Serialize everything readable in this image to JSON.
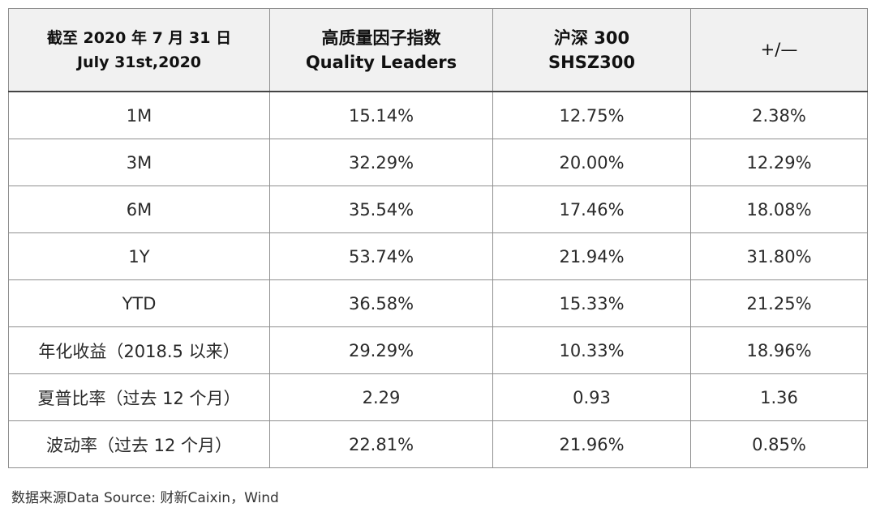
{
  "table": {
    "headers": [
      {
        "line1": "截至 2020 年 7 月 31 日",
        "line2": "July 31st,2020"
      },
      {
        "line1": "高质量因子指数",
        "line2": "Quality Leaders"
      },
      {
        "line1": "沪深 300",
        "line2": "SHSZ300"
      },
      {
        "line1": "+/—",
        "line2": ""
      }
    ],
    "rows": [
      {
        "label": "1M",
        "quality": "15.14%",
        "shsz": "12.75%",
        "diff": "2.38%"
      },
      {
        "label": "3M",
        "quality": "32.29%",
        "shsz": "20.00%",
        "diff": "12.29%"
      },
      {
        "label": "6M",
        "quality": "35.54%",
        "shsz": "17.46%",
        "diff": "18.08%"
      },
      {
        "label": "1Y",
        "quality": "53.74%",
        "shsz": "21.94%",
        "diff": "31.80%"
      },
      {
        "label": "YTD",
        "quality": "36.58%",
        "shsz": "15.33%",
        "diff": "21.25%"
      },
      {
        "label": "年化收益（2018.5 以来）",
        "quality": "29.29%",
        "shsz": "10.33%",
        "diff": "18.96%"
      },
      {
        "label": "夏普比率（过去 12 个月）",
        "quality": "2.29",
        "shsz": "0.93",
        "diff": "1.36"
      },
      {
        "label": "波动率（过去 12 个月）",
        "quality": "22.81%",
        "shsz": "21.96%",
        "diff": "0.85%"
      }
    ]
  },
  "footnote": "数据来源Data Source: 财新Caixin，Wind"
}
